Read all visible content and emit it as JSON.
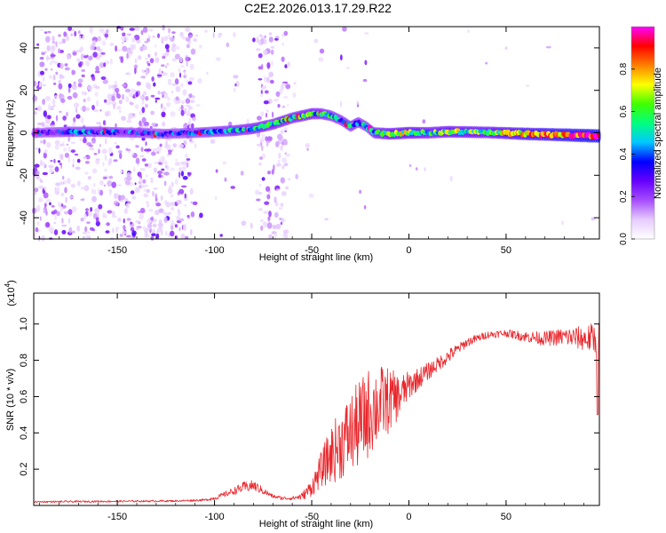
{
  "title": "C2E2.2026.013.17.29.R22",
  "chart_data": [
    {
      "type": "heatmap",
      "title": "C2E2.2026.013.17.29.R22",
      "xlabel": "Height of straight line (km)",
      "ylabel": "Frequency (Hz)",
      "xlim": [
        -193,
        98
      ],
      "ylim": [
        -50,
        50
      ],
      "xticks": [
        -150,
        -100,
        -50,
        0,
        50
      ],
      "yticks": [
        -40,
        -20,
        0,
        20,
        40
      ],
      "colorbar": {
        "label": "Normalized spectral amplitude",
        "range": [
          0,
          1
        ],
        "ticks": [
          "0.0",
          "0.2",
          "0.4",
          "0.6",
          "0.8"
        ],
        "colormap": [
          "#ffffff",
          "#e6ccff",
          "#a64dff",
          "#6600ff",
          "#0000ff",
          "#00c8ff",
          "#00ff80",
          "#40ff00",
          "#ffff00",
          "#ff8000",
          "#ff0000",
          "#ff00ff"
        ]
      },
      "ridge": {
        "x": [
          -190,
          -175,
          -160,
          -140,
          -125,
          -110,
          -100,
          -90,
          -80,
          -70,
          -60,
          -50,
          -45,
          -40,
          -35,
          -30,
          -26,
          -22,
          -18,
          -10,
          0,
          10,
          20,
          40,
          60,
          80,
          98
        ],
        "y": [
          0,
          0.5,
          0.5,
          0,
          -0.5,
          0,
          0.5,
          1,
          2,
          4,
          7,
          9,
          9,
          8,
          6,
          3,
          5,
          3,
          0,
          -0.5,
          0,
          0,
          0.5,
          0.2,
          -0.5,
          -1,
          -1.5
        ],
        "amplitude": [
          0.25,
          0.35,
          0.35,
          0.3,
          0.3,
          0.35,
          0.4,
          0.45,
          0.5,
          0.5,
          0.5,
          0.55,
          0.5,
          0.45,
          0.4,
          0.45,
          0.4,
          0.4,
          0.5,
          0.6,
          0.65,
          0.55,
          0.6,
          0.6,
          0.75,
          0.85,
          0.95
        ]
      }
    },
    {
      "type": "line",
      "xlabel": "Height of straight line (km)",
      "ylabel": "SNR (10 * v/v)",
      "scale_label": "(x10",
      "scale_exp": "4",
      "scale_close": ")",
      "xlim": [
        -193,
        98
      ],
      "ylim": [
        0,
        1.17
      ],
      "xticks": [
        -150,
        -100,
        -50,
        0,
        50
      ],
      "yticks": [
        0.2,
        0.4,
        0.6,
        0.8,
        1.0
      ],
      "color": "#e8262b",
      "envelope": {
        "x": [
          -193,
          -120,
          -105,
          -100,
          -95,
          -90,
          -85,
          -80,
          -75,
          -70,
          -65,
          -60,
          -55,
          -50,
          -45,
          -40,
          -35,
          -30,
          -25,
          -20,
          -15,
          -10,
          -5,
          0,
          5,
          10,
          15,
          20,
          25,
          30,
          40,
          50,
          60,
          70,
          80,
          90,
          98
        ],
        "y": [
          0.02,
          0.025,
          0.03,
          0.04,
          0.06,
          0.08,
          0.1,
          0.11,
          0.08,
          0.05,
          0.04,
          0.04,
          0.05,
          0.1,
          0.2,
          0.28,
          0.34,
          0.4,
          0.45,
          0.52,
          0.56,
          0.58,
          0.6,
          0.66,
          0.7,
          0.74,
          0.78,
          0.82,
          0.86,
          0.9,
          0.94,
          0.95,
          0.93,
          0.92,
          0.93,
          0.92,
          0.92
        ],
        "noise": [
          0.005,
          0.005,
          0.006,
          0.01,
          0.015,
          0.02,
          0.03,
          0.03,
          0.02,
          0.01,
          0.01,
          0.01,
          0.02,
          0.05,
          0.1,
          0.16,
          0.2,
          0.22,
          0.25,
          0.25,
          0.22,
          0.18,
          0.12,
          0.08,
          0.06,
          0.05,
          0.04,
          0.04,
          0.03,
          0.025,
          0.02,
          0.02,
          0.03,
          0.04,
          0.05,
          0.07,
          0.1
        ]
      }
    }
  ]
}
